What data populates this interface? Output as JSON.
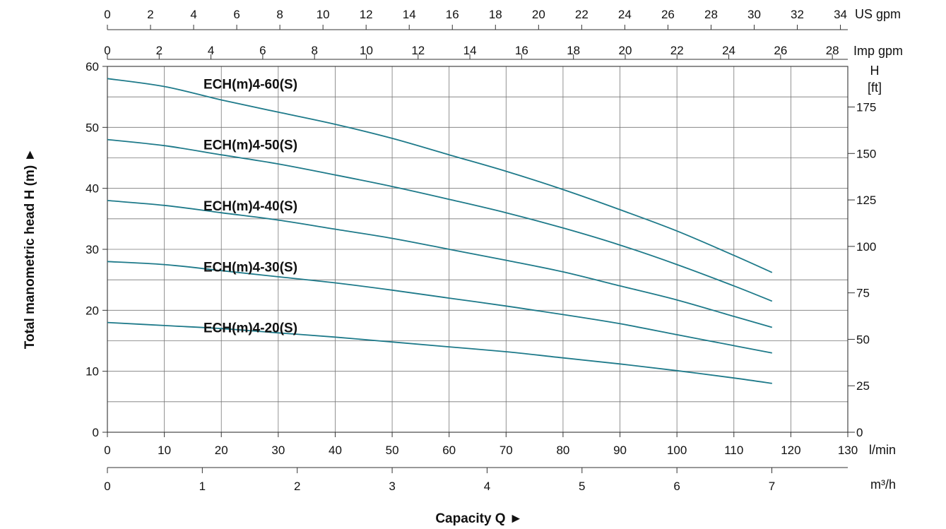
{
  "chart_data": {
    "type": "line",
    "title": "",
    "xlabel": "Capacity Q ►",
    "ylabel": "Total manometric head H (m) ►",
    "xlim": [
      0,
      130
    ],
    "ylim": [
      0,
      60
    ],
    "grid": true,
    "axes": {
      "bottom": {
        "unit": "l/min",
        "ticks": [
          0,
          10,
          20,
          30,
          40,
          50,
          60,
          70,
          80,
          90,
          100,
          110,
          120,
          130
        ]
      },
      "bottom_secondary": {
        "unit": "m³/h",
        "ticks": [
          0,
          1,
          2,
          3,
          4,
          5,
          6,
          7
        ]
      },
      "top_us": {
        "unit": "US gpm",
        "ticks": [
          0,
          2,
          4,
          6,
          8,
          10,
          12,
          14,
          16,
          18,
          20,
          22,
          24,
          26,
          28,
          30,
          32,
          34
        ]
      },
      "top_imp": {
        "unit": "Imp gpm",
        "ticks": [
          0,
          2,
          4,
          6,
          8,
          10,
          12,
          14,
          16,
          18,
          20,
          22,
          24,
          26,
          28
        ]
      },
      "left": {
        "unit": "",
        "ticks": [
          0,
          10,
          20,
          30,
          40,
          50,
          60
        ]
      },
      "right": {
        "unit_line1": "H",
        "unit_line2": "[ft]",
        "ticks": [
          0,
          25,
          50,
          75,
          100,
          125,
          150,
          175
        ]
      }
    },
    "x": [
      0,
      10,
      20,
      30,
      40,
      50,
      60,
      70,
      80,
      90,
      100,
      110,
      116.7
    ],
    "series": [
      {
        "name": "ECH(m)4-60(S)",
        "values": [
          58,
          56.7,
          54.5,
          52.5,
          50.5,
          48.2,
          45.5,
          42.8,
          39.8,
          36.5,
          33,
          29,
          26.2
        ]
      },
      {
        "name": "ECH(m)4-50(S)",
        "values": [
          48,
          47,
          45.5,
          44,
          42.2,
          40.3,
          38.2,
          36,
          33.5,
          30.7,
          27.5,
          24,
          21.5
        ]
      },
      {
        "name": "ECH(m)4-40(S)",
        "values": [
          38,
          37.2,
          36,
          34.8,
          33.3,
          31.8,
          30,
          28.2,
          26.3,
          24,
          21.7,
          19,
          17.2
        ]
      },
      {
        "name": "ECH(m)4-30(S)",
        "values": [
          28,
          27.5,
          26.5,
          25.5,
          24.5,
          23.3,
          22,
          20.7,
          19.3,
          17.8,
          16,
          14.2,
          13
        ]
      },
      {
        "name": "ECH(m)4-20(S)",
        "values": [
          18,
          17.5,
          17,
          16.3,
          15.6,
          14.8,
          14,
          13.2,
          12.2,
          11.2,
          10.1,
          8.9,
          8
        ]
      }
    ],
    "line_color": "#1e7a8a"
  }
}
